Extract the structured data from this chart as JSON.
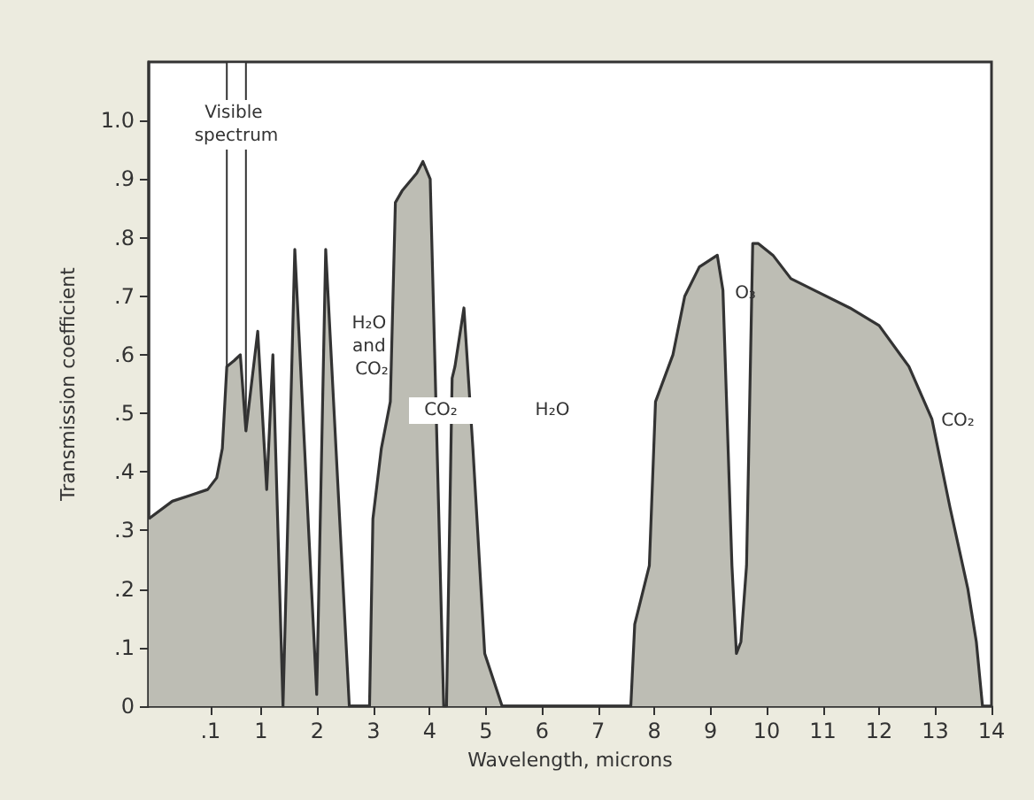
{
  "chart_data": {
    "type": "area",
    "xlabel": "Wavelength, microns",
    "ylabel": "Transmission coefficient",
    "xlim": [
      -1,
      14
    ],
    "ylim": [
      0,
      1.1
    ],
    "xticks": [
      {
        "value": 0.1,
        "label": ".1"
      },
      1,
      2,
      3,
      4,
      5,
      6,
      7,
      8,
      9,
      10,
      11,
      12,
      13,
      14
    ],
    "yticks": [
      0,
      {
        "value": 0.1,
        "label": ".1"
      },
      {
        "value": 0.2,
        "label": ".2"
      },
      {
        "value": 0.3,
        "label": ".3"
      },
      {
        "value": 0.4,
        "label": ".4"
      },
      {
        "value": 0.5,
        "label": ".5"
      },
      {
        "value": 0.6,
        "label": ".6"
      },
      {
        "value": 0.7,
        "label": ".7"
      },
      {
        "value": 0.8,
        "label": ".8"
      },
      {
        "value": 0.9,
        "label": ".9"
      },
      {
        "value": 1.0,
        "label": "1.0"
      }
    ],
    "grid": false,
    "marker": "none",
    "line_style": "solid",
    "x": [
      -1,
      -0.58,
      -0.26,
      0.05,
      0.21,
      0.31,
      0.39,
      0.52,
      0.63,
      0.73,
      0.94,
      1.1,
      1.21,
      1.39,
      1.6,
      1.99,
      2.15,
      2.57,
      2.93,
      2.99,
      3.14,
      3.3,
      3.39,
      3.51,
      3.77,
      3.88,
      4.01,
      4.25,
      4.3,
      4.4,
      4.45,
      4.61,
      4.77,
      4.98,
      5.29,
      7.58,
      7.65,
      7.91,
      8.02,
      8.33,
      8.54,
      8.8,
      9.12,
      9.22,
      9.38,
      9.46,
      9.54,
      9.64,
      9.75,
      9.85,
      10.11,
      10.43,
      10.85,
      11.48,
      12,
      12.53,
      12.94,
      13.26,
      13.58,
      13.73,
      13.84
    ],
    "series": [
      {
        "color": "#bdbdb4",
        "values": [
          0.32,
          0.35,
          0.36,
          0.37,
          0.39,
          0.44,
          0.58,
          0.59,
          0.6,
          0.47,
          0.64,
          0.37,
          0.6,
          0,
          0.78,
          0.02,
          0.78,
          0,
          0,
          0.32,
          0.44,
          0.52,
          0.86,
          0.88,
          0.91,
          0.93,
          0.9,
          0,
          0,
          0.56,
          0.58,
          0.68,
          0.44,
          0.09,
          0,
          0,
          0.14,
          0.24,
          0.52,
          0.6,
          0.7,
          0.75,
          0.77,
          0.71,
          0.24,
          0.09,
          0.11,
          0.24,
          0.79,
          0.79,
          0.77,
          0.73,
          0.71,
          0.68,
          0.65,
          0.58,
          0.49,
          0.34,
          0.2,
          0.11,
          0
        ]
      }
    ],
    "bands": [
      {
        "axis": "x",
        "from": 0.39,
        "to": 0.73,
        "label": "Visible spectrum"
      }
    ],
    "annotations": [
      "H₂O and CO₂",
      "CO₂",
      "H₂O",
      "O₃",
      "CO₂"
    ]
  }
}
